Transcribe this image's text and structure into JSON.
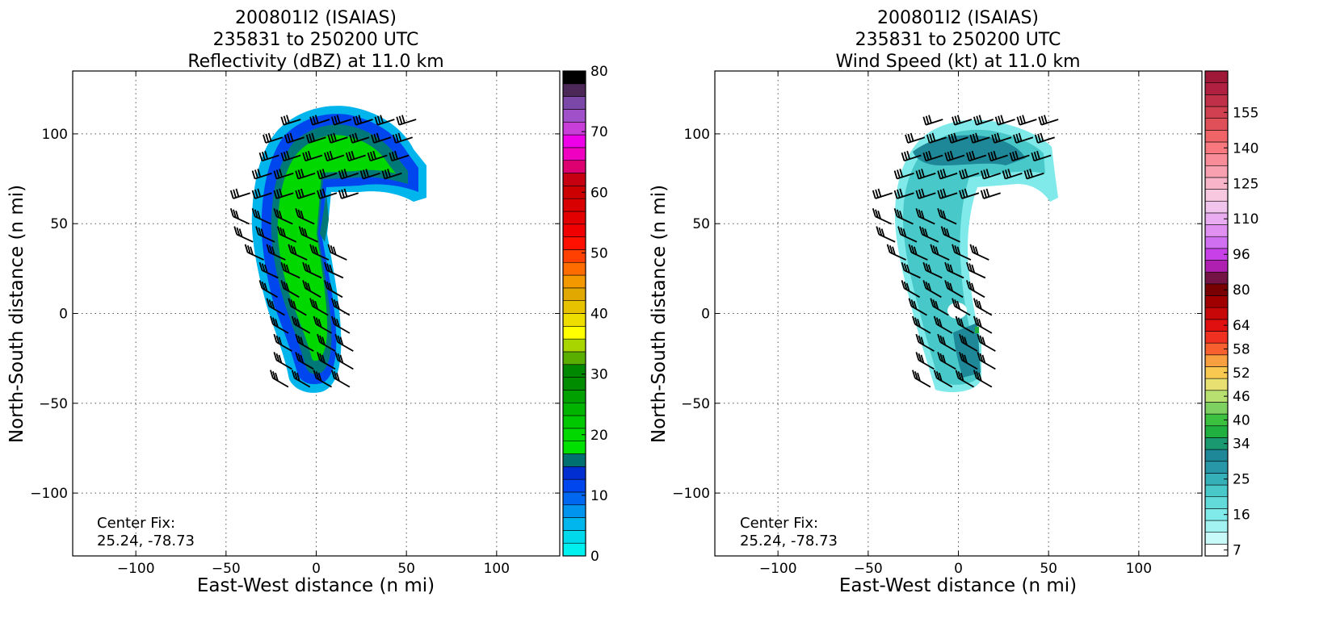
{
  "chart_data": [
    {
      "type": "heatmap",
      "title": [
        "200801I2 (ISAIAS)",
        "235831 to 250200 UTC",
        "Reflectivity (dBZ) at 11.0 km"
      ],
      "xlabel": "East-West distance (n mi)",
      "ylabel": "North-South distance (n mi)",
      "xlim": [
        -135,
        135
      ],
      "ylim": [
        -135,
        135
      ],
      "xticks": [
        -100,
        -50,
        0,
        50,
        100
      ],
      "yticks": [
        -100,
        -50,
        0,
        50,
        100
      ],
      "xtick_labels": [
        "−100",
        "−50",
        "0",
        "50",
        "100"
      ],
      "ytick_labels": [
        "−100",
        "−50",
        "0",
        "50",
        "100"
      ],
      "grid": true,
      "annotation": [
        "Center Fix:",
        "25.24, -78.73"
      ],
      "colorbar": {
        "min": 0,
        "max": 80,
        "colors": [
          "#00f0f0",
          "#00d8ec",
          "#00b6ec",
          "#0094ee",
          "#0068f0",
          "#0046ee",
          "#002ed0",
          "#007070",
          "#00e000",
          "#00d800",
          "#00c800",
          "#00b400",
          "#00a000",
          "#008c00",
          "#008800",
          "#5aae00",
          "#a8d400",
          "#ffff00",
          "#eede00",
          "#e6c200",
          "#e0a800",
          "#f49800",
          "#fe6c00",
          "#ff4000",
          "#ff1000",
          "#f00000",
          "#e20000",
          "#d80000",
          "#cc0000",
          "#c60010",
          "#dc0070",
          "#f000c0",
          "#ee00e8",
          "#c83ed8",
          "#a050c8",
          "#7c48a8",
          "#4c2858",
          "#000000"
        ],
        "tick_values": [
          0,
          10,
          20,
          30,
          40,
          50,
          60,
          70,
          80
        ],
        "tick_labels": [
          "0",
          "10",
          "20",
          "30",
          "40",
          "50",
          "60",
          "70",
          "80"
        ]
      }
    },
    {
      "type": "heatmap",
      "title": [
        "200801I2 (ISAIAS)",
        "235831 to 250200 UTC",
        "Wind Speed (kt) at 11.0 km"
      ],
      "xlabel": "East-West distance (n mi)",
      "ylabel": "North-South distance (n mi)",
      "xlim": [
        -135,
        135
      ],
      "ylim": [
        -135,
        135
      ],
      "xticks": [
        -100,
        -50,
        0,
        50,
        100
      ],
      "yticks": [
        -100,
        -50,
        0,
        50,
        100
      ],
      "xtick_labels": [
        "−100",
        "−50",
        "0",
        "50",
        "100"
      ],
      "ytick_labels": [
        "−100",
        "−50",
        "0",
        "50",
        "100"
      ],
      "grid": true,
      "annotation": [
        "Center Fix:",
        "25.24, -78.73"
      ],
      "colorbar": {
        "colors": [
          "#ffffff",
          "#c8fafa",
          "#a2f2f2",
          "#80eaea",
          "#62dada",
          "#48c8c8",
          "#36b0b8",
          "#2898a8",
          "#1e8898",
          "#1a9870",
          "#20b040",
          "#3cc040",
          "#7ed060",
          "#b8e070",
          "#e8e070",
          "#f8c850",
          "#f8a040",
          "#f86030",
          "#f03020",
          "#e01010",
          "#c80808",
          "#a00000",
          "#780000",
          "#741444",
          "#b020b0",
          "#c840e8",
          "#d070f0",
          "#e090f0",
          "#eaacf0",
          "#f0c4ec",
          "#f8c8e0",
          "#f8b4c8",
          "#f8a0b0",
          "#f88c98",
          "#f87880",
          "#f06468",
          "#e05058",
          "#d04050",
          "#c03048",
          "#b02040",
          "#a01838"
        ],
        "tick_labels": [
          "7",
          "16",
          "25",
          "34",
          "40",
          "46",
          "52",
          "58",
          "64",
          "80",
          "96",
          "110",
          "125",
          "140",
          "155"
        ],
        "tick_bins": [
          0,
          3,
          6,
          9,
          11,
          13,
          15,
          17,
          19,
          22,
          25,
          28,
          31,
          34,
          37
        ]
      }
    }
  ]
}
